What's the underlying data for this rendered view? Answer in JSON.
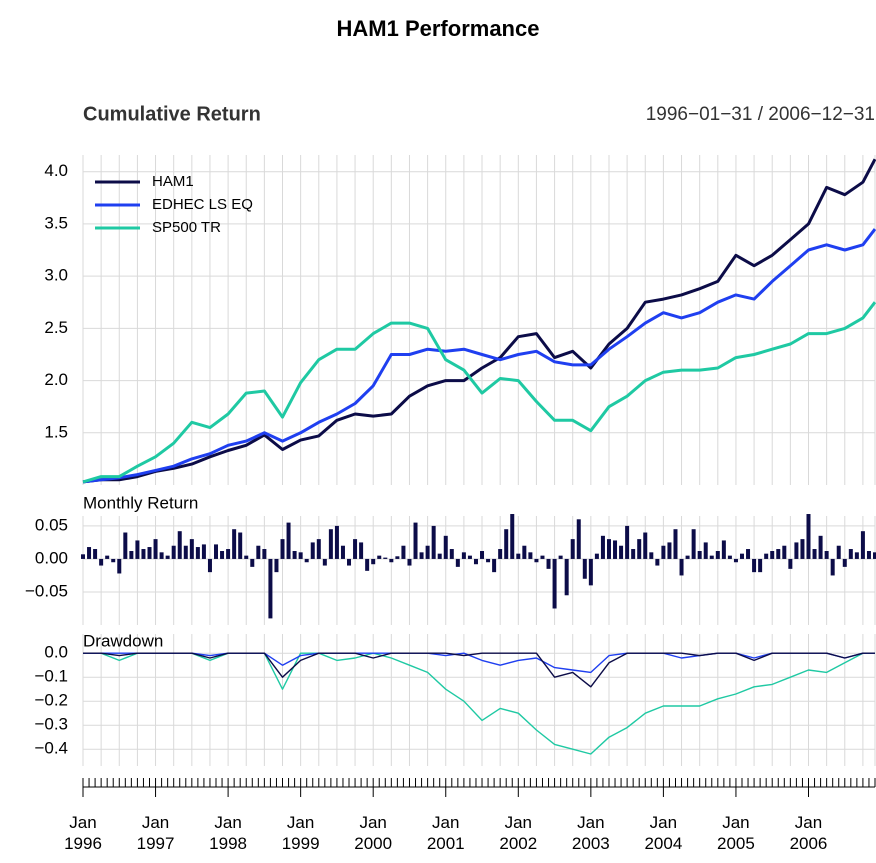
{
  "title": "HAM1 Performance",
  "chart_data": [
    {
      "type": "line",
      "title": "Cumulative Return",
      "subtitle": "1996−01−31 / 2006−12−31",
      "legend": "topleft",
      "grid": true,
      "x": [
        "1996-01",
        "1996-04",
        "1996-07",
        "1996-10",
        "1997-01",
        "1997-04",
        "1997-07",
        "1997-10",
        "1998-01",
        "1998-04",
        "1998-07",
        "1998-10",
        "1999-01",
        "1999-04",
        "1999-07",
        "1999-10",
        "2000-01",
        "2000-04",
        "2000-07",
        "2000-10",
        "2001-01",
        "2001-04",
        "2001-07",
        "2001-10",
        "2002-01",
        "2002-04",
        "2002-07",
        "2002-10",
        "2003-01",
        "2003-04",
        "2003-07",
        "2003-10",
        "2004-01",
        "2004-04",
        "2004-07",
        "2004-10",
        "2005-01",
        "2005-04",
        "2005-07",
        "2005-10",
        "2006-01",
        "2006-04",
        "2006-07",
        "2006-10",
        "2006-12"
      ],
      "xlim": [
        "1996-01",
        "2006-12"
      ],
      "ylim": [
        1.0,
        4.16
      ],
      "yticks": [
        {
          "value": 1.5,
          "label": "1.5"
        },
        {
          "value": 2.0,
          "label": "2.0"
        },
        {
          "value": 2.5,
          "label": "2.5"
        },
        {
          "value": 3.0,
          "label": "3.0"
        },
        {
          "value": 3.5,
          "label": "3.5"
        },
        {
          "value": 4.0,
          "label": "4.0"
        }
      ],
      "series": [
        {
          "name": "HAM1",
          "color": "#0c0c48",
          "values": [
            1.03,
            1.05,
            1.05,
            1.08,
            1.13,
            1.16,
            1.2,
            1.27,
            1.33,
            1.38,
            1.48,
            1.34,
            1.43,
            1.47,
            1.62,
            1.68,
            1.66,
            1.68,
            1.85,
            1.95,
            2.0,
            2.0,
            2.12,
            2.22,
            2.42,
            2.45,
            2.22,
            2.28,
            2.12,
            2.35,
            2.5,
            2.75,
            2.78,
            2.82,
            2.88,
            2.95,
            3.2,
            3.1,
            3.2,
            3.35,
            3.5,
            3.85,
            3.78,
            3.9,
            4.12
          ]
        },
        {
          "name": "EDHEC LS EQ",
          "color": "#1f3ff0",
          "values": [
            1.03,
            1.05,
            1.07,
            1.1,
            1.14,
            1.18,
            1.25,
            1.3,
            1.38,
            1.42,
            1.5,
            1.42,
            1.5,
            1.6,
            1.68,
            1.78,
            1.95,
            2.25,
            2.25,
            2.3,
            2.28,
            2.3,
            2.25,
            2.2,
            2.25,
            2.28,
            2.18,
            2.15,
            2.15,
            2.3,
            2.42,
            2.55,
            2.65,
            2.6,
            2.65,
            2.75,
            2.82,
            2.78,
            2.95,
            3.1,
            3.25,
            3.3,
            3.25,
            3.3,
            3.45
          ]
        },
        {
          "name": "SP500 TR",
          "color": "#1fc9a3",
          "values": [
            1.03,
            1.08,
            1.08,
            1.18,
            1.27,
            1.4,
            1.6,
            1.55,
            1.68,
            1.88,
            1.9,
            1.65,
            1.98,
            2.2,
            2.3,
            2.3,
            2.45,
            2.55,
            2.55,
            2.5,
            2.2,
            2.1,
            1.88,
            2.02,
            2.0,
            1.8,
            1.62,
            1.62,
            1.52,
            1.75,
            1.85,
            2.0,
            2.08,
            2.1,
            2.1,
            2.12,
            2.22,
            2.25,
            2.3,
            2.35,
            2.45,
            2.45,
            2.5,
            2.6,
            2.75
          ]
        }
      ]
    },
    {
      "type": "bar",
      "title": "Monthly Return",
      "color": "#0c0c48",
      "x": [
        "1996-01",
        "1996-02",
        "1996-03",
        "1996-04",
        "1996-05",
        "1996-06",
        "1996-07",
        "1996-08",
        "1996-09",
        "1996-10",
        "1996-11",
        "1996-12",
        "1997-01",
        "1997-02",
        "1997-03",
        "1997-04",
        "1997-05",
        "1997-06",
        "1997-07",
        "1997-08",
        "1997-09",
        "1997-10",
        "1997-11",
        "1997-12",
        "1998-01",
        "1998-02",
        "1998-03",
        "1998-04",
        "1998-05",
        "1998-06",
        "1998-07",
        "1998-08",
        "1998-09",
        "1998-10",
        "1998-11",
        "1998-12",
        "1999-01",
        "1999-02",
        "1999-03",
        "1999-04",
        "1999-05",
        "1999-06",
        "1999-07",
        "1999-08",
        "1999-09",
        "1999-10",
        "1999-11",
        "1999-12",
        "2000-01",
        "2000-02",
        "2000-03",
        "2000-04",
        "2000-05",
        "2000-06",
        "2000-07",
        "2000-08",
        "2000-09",
        "2000-10",
        "2000-11",
        "2000-12",
        "2001-01",
        "2001-02",
        "2001-03",
        "2001-04",
        "2001-05",
        "2001-06",
        "2001-07",
        "2001-08",
        "2001-09",
        "2001-10",
        "2001-11",
        "2001-12",
        "2002-01",
        "2002-02",
        "2002-03",
        "2002-04",
        "2002-05",
        "2002-06",
        "2002-07",
        "2002-08",
        "2002-09",
        "2002-10",
        "2002-11",
        "2002-12",
        "2003-01",
        "2003-02",
        "2003-03",
        "2003-04",
        "2003-05",
        "2003-06",
        "2003-07",
        "2003-08",
        "2003-09",
        "2003-10",
        "2003-11",
        "2003-12",
        "2004-01",
        "2004-02",
        "2004-03",
        "2004-04",
        "2004-05",
        "2004-06",
        "2004-07",
        "2004-08",
        "2004-09",
        "2004-10",
        "2004-11",
        "2004-12",
        "2005-01",
        "2005-02",
        "2005-03",
        "2005-04",
        "2005-05",
        "2005-06",
        "2005-07",
        "2005-08",
        "2005-09",
        "2005-10",
        "2005-11",
        "2005-12",
        "2006-01",
        "2006-02",
        "2006-03",
        "2006-04",
        "2006-05",
        "2006-06",
        "2006-07",
        "2006-08",
        "2006-09",
        "2006-10",
        "2006-11",
        "2006-12"
      ],
      "values": [
        0.007,
        0.018,
        0.015,
        -0.01,
        0.005,
        -0.005,
        -0.022,
        0.04,
        0.012,
        0.028,
        0.015,
        0.018,
        0.03,
        0.01,
        0.005,
        0.02,
        0.042,
        0.02,
        0.03,
        0.018,
        0.022,
        -0.02,
        0.022,
        0.012,
        0.015,
        0.045,
        0.04,
        0.005,
        -0.012,
        0.02,
        0.015,
        -0.09,
        -0.02,
        0.03,
        0.055,
        0.012,
        0.01,
        -0.005,
        0.025,
        0.03,
        -0.01,
        0.045,
        0.05,
        0.02,
        -0.01,
        0.03,
        0.025,
        -0.018,
        -0.008,
        0.005,
        0.002,
        -0.005,
        0.004,
        0.02,
        -0.01,
        0.055,
        0.01,
        0.02,
        0.05,
        0.008,
        0.035,
        0.015,
        -0.012,
        0.01,
        0.005,
        -0.008,
        0.012,
        -0.005,
        -0.02,
        0.015,
        0.045,
        0.068,
        0.008,
        0.02,
        0.01,
        -0.005,
        0.005,
        -0.015,
        -0.075,
        0.005,
        -0.055,
        0.03,
        0.06,
        -0.03,
        -0.04,
        0.008,
        0.035,
        0.03,
        0.028,
        0.02,
        0.05,
        0.015,
        0.03,
        0.04,
        0.01,
        -0.01,
        0.02,
        0.025,
        0.045,
        -0.025,
        0.005,
        0.045,
        0.012,
        0.025,
        0.005,
        0.012,
        0.028,
        0.005,
        -0.005,
        0.008,
        0.015,
        -0.02,
        -0.02,
        0.008,
        0.012,
        0.015,
        0.02,
        -0.015,
        0.025,
        0.03,
        0.068,
        0.015,
        0.035,
        0.012,
        -0.025,
        0.02,
        -0.012,
        0.015,
        0.01,
        0.042,
        0.012,
        0.01
      ],
      "xlim": [
        "1996-01",
        "2006-12"
      ],
      "ylim": [
        -0.1,
        0.065
      ],
      "yticks": [
        {
          "value": -0.05,
          "label": "−0.05"
        },
        {
          "value": 0,
          "label": "0.00"
        },
        {
          "value": 0.05,
          "label": "0.05"
        }
      ]
    },
    {
      "type": "line",
      "title": "Drawdown",
      "x": [
        "1996-01",
        "1996-04",
        "1996-07",
        "1996-10",
        "1997-01",
        "1997-04",
        "1997-07",
        "1997-10",
        "1998-01",
        "1998-04",
        "1998-07",
        "1998-10",
        "1999-01",
        "1999-04",
        "1999-07",
        "1999-10",
        "2000-01",
        "2000-04",
        "2000-07",
        "2000-10",
        "2001-01",
        "2001-04",
        "2001-07",
        "2001-10",
        "2002-01",
        "2002-04",
        "2002-07",
        "2002-10",
        "2003-01",
        "2003-04",
        "2003-07",
        "2003-10",
        "2004-01",
        "2004-04",
        "2004-07",
        "2004-10",
        "2005-01",
        "2005-04",
        "2005-07",
        "2005-10",
        "2006-01",
        "2006-04",
        "2006-07",
        "2006-10",
        "2006-12"
      ],
      "xlim": [
        "1996-01",
        "2006-12"
      ],
      "ylim": [
        -0.47,
        0.08
      ],
      "yticks": [
        {
          "value": -0.4,
          "label": "−0.4"
        },
        {
          "value": -0.3,
          "label": "−0.3"
        },
        {
          "value": -0.2,
          "label": "−0.2"
        },
        {
          "value": -0.1,
          "label": "−0.1"
        },
        {
          "value": 0,
          "label": "0.0"
        }
      ],
      "xticks": [
        {
          "value": "1996-01",
          "label": "Jan 1996"
        },
        {
          "value": "1997-01",
          "label": "Jan 1997"
        },
        {
          "value": "1998-01",
          "label": "Jan 1998"
        },
        {
          "value": "1999-01",
          "label": "Jan 1999"
        },
        {
          "value": "2000-01",
          "label": "Jan 2000"
        },
        {
          "value": "2001-01",
          "label": "Jan 2001"
        },
        {
          "value": "2002-01",
          "label": "Jan 2002"
        },
        {
          "value": "2003-01",
          "label": "Jan 2003"
        },
        {
          "value": "2004-01",
          "label": "Jan 2004"
        },
        {
          "value": "2005-01",
          "label": "Jan 2005"
        },
        {
          "value": "2006-01",
          "label": "Jan 2006"
        }
      ],
      "series": [
        {
          "color": "#1fc9a3",
          "values": [
            0,
            0,
            -0.03,
            0,
            0,
            0,
            0,
            -0.03,
            0,
            0,
            0,
            -0.15,
            0,
            0,
            -0.03,
            -0.02,
            0,
            -0.02,
            -0.05,
            -0.08,
            -0.15,
            -0.2,
            -0.28,
            -0.23,
            -0.25,
            -0.32,
            -0.38,
            -0.4,
            -0.42,
            -0.35,
            -0.31,
            -0.25,
            -0.22,
            -0.22,
            -0.22,
            -0.19,
            -0.17,
            -0.14,
            -0.13,
            -0.1,
            -0.07,
            -0.08,
            -0.04,
            0,
            0
          ]
        },
        {
          "color": "#1f3ff0",
          "values": [
            0,
            0,
            0,
            0,
            0,
            0,
            0,
            -0.01,
            0,
            0,
            0,
            -0.05,
            -0.01,
            0,
            0,
            0,
            0,
            0,
            0,
            0,
            -0.01,
            0,
            -0.03,
            -0.05,
            -0.03,
            -0.02,
            -0.06,
            -0.07,
            -0.08,
            -0.01,
            0,
            0,
            0,
            -0.02,
            -0.01,
            0,
            0,
            -0.02,
            0,
            0,
            0,
            0,
            -0.02,
            0,
            0
          ]
        },
        {
          "color": "#0c0c48",
          "values": [
            0,
            0,
            -0.01,
            0,
            0,
            0,
            0,
            -0.02,
            0,
            0,
            0,
            -0.1,
            -0.03,
            0,
            0,
            0,
            -0.02,
            0,
            0,
            0,
            0,
            -0.01,
            0,
            0,
            0,
            0,
            -0.1,
            -0.08,
            -0.14,
            -0.04,
            0,
            0,
            0,
            0,
            -0.01,
            0,
            0,
            -0.03,
            0,
            0,
            0,
            0,
            -0.02,
            0,
            0
          ]
        }
      ]
    }
  ]
}
